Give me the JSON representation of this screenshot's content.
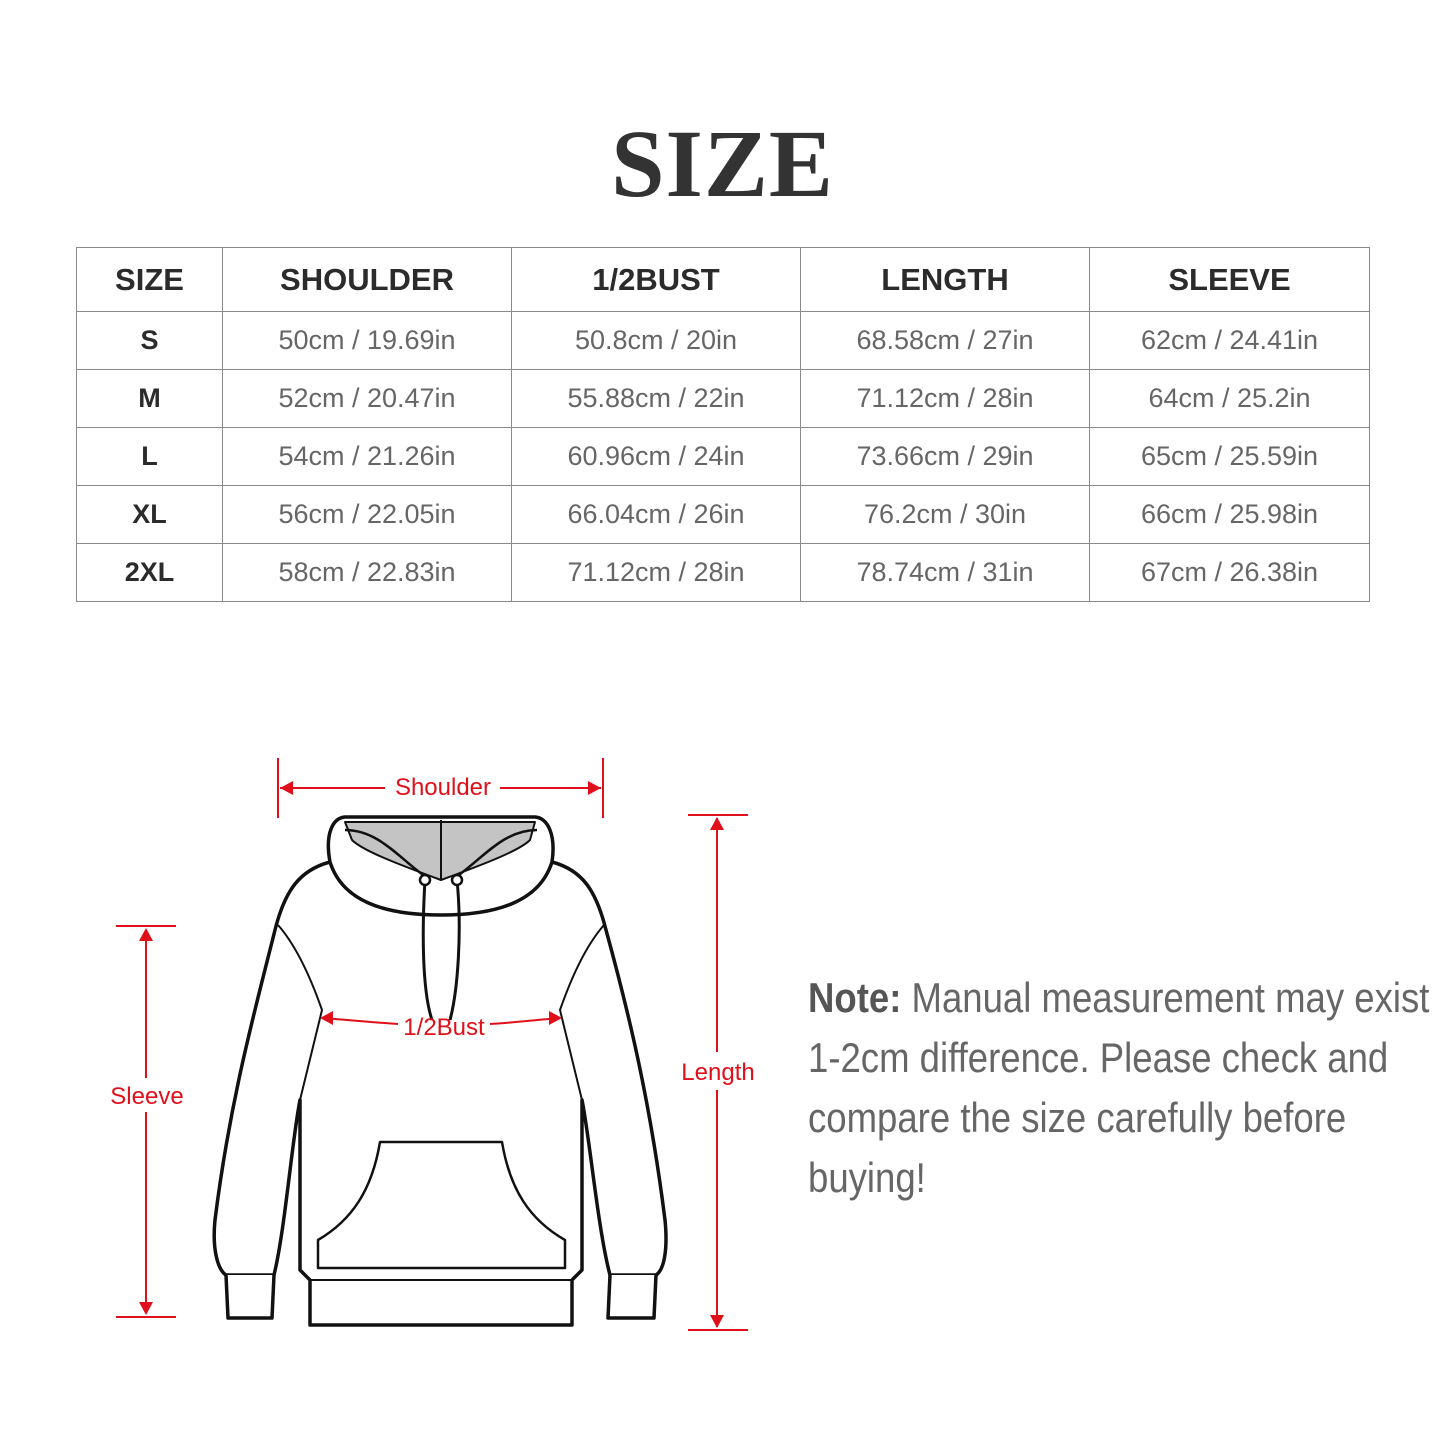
{
  "title": "SIZE",
  "table": {
    "headers": [
      "SIZE",
      "SHOULDER",
      "1/2BUST",
      "LENGTH",
      "SLEEVE"
    ],
    "rows": [
      [
        "S",
        "50cm / 19.69in",
        "50.8cm / 20in",
        "68.58cm / 27in",
        "62cm / 24.41in"
      ],
      [
        "M",
        "52cm / 20.47in",
        "55.88cm / 22in",
        "71.12cm / 28in",
        "64cm / 25.2in"
      ],
      [
        "L",
        "54cm / 21.26in",
        "60.96cm / 24in",
        "73.66cm / 29in",
        "65cm / 25.59in"
      ],
      [
        "XL",
        "56cm / 22.05in",
        "66.04cm / 26in",
        "76.2cm / 30in",
        "66cm / 25.98in"
      ],
      [
        "2XL",
        "58cm / 22.83in",
        "71.12cm / 28in",
        "78.74cm / 31in",
        "67cm / 26.38in"
      ]
    ]
  },
  "diagram": {
    "labels": {
      "shoulder": "Shoulder",
      "bust": "1/2Bust",
      "sleeve": "Sleeve",
      "length": "Length"
    },
    "measure_color": "#e0101a"
  },
  "note": {
    "prefix": "Note:",
    "text": " Manual measurement may exist 1-2cm difference. Please check and compare the size carefully before buying!"
  }
}
